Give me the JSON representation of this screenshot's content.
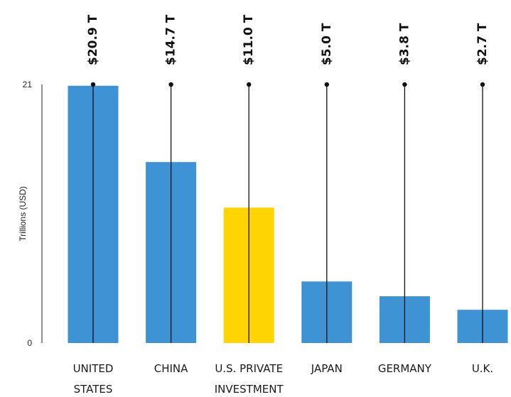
{
  "chart_data": {
    "type": "bar",
    "ylabel": "Trillions (USD)",
    "ylim": [
      0,
      21
    ],
    "yticks": [
      "0",
      "21"
    ],
    "categories": [
      {
        "lines": [
          "UNITED",
          "STATES"
        ],
        "value": 20.9,
        "label": "$20.9 T",
        "color": "#3d93d4"
      },
      {
        "lines": [
          "CHINA"
        ],
        "value": 14.7,
        "label": "$14.7 T",
        "color": "#3d93d4"
      },
      {
        "lines": [
          "U.S. PRIVATE",
          "INVESTMENT"
        ],
        "value": 11.0,
        "label": "$11.0 T",
        "color": "#ffd400"
      },
      {
        "lines": [
          "JAPAN"
        ],
        "value": 5.0,
        "label": "$5.0 T",
        "color": "#3d93d4"
      },
      {
        "lines": [
          "GERMANY"
        ],
        "value": 3.8,
        "label": "$3.8 T",
        "color": "#3d93d4"
      },
      {
        "lines": [
          "U.K."
        ],
        "value": 2.7,
        "label": "$2.7 T",
        "color": "#3d93d4"
      }
    ]
  }
}
